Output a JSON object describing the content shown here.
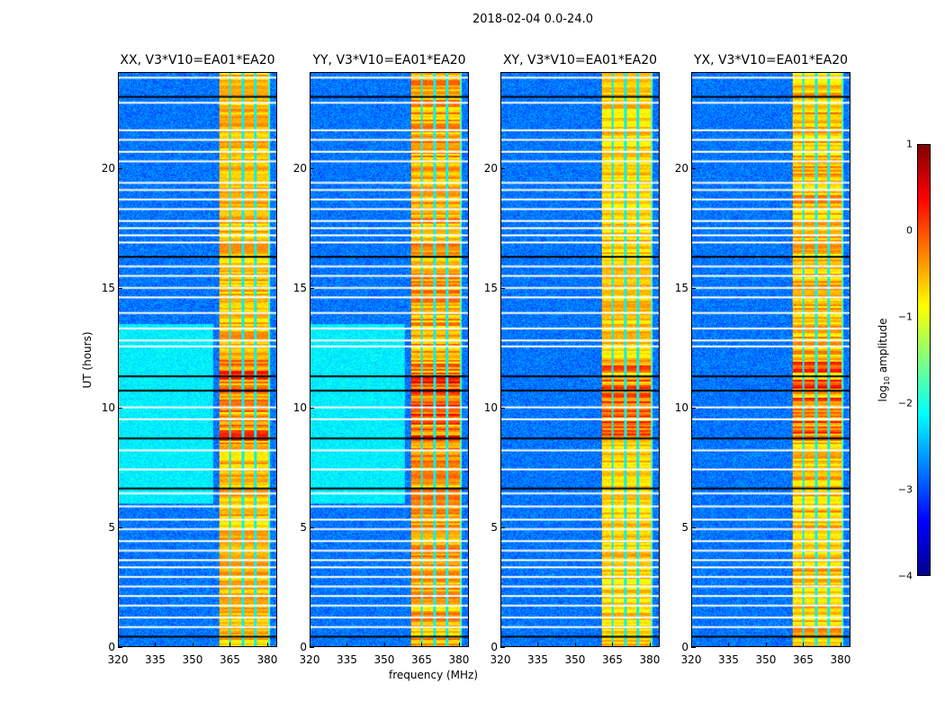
{
  "chart_data": {
    "type": "heatmap",
    "title": "2018-02-04 0.0-24.0",
    "xlabel": "frequency (MHz)",
    "ylabel": "UT (hours)",
    "xlim": [
      320,
      384
    ],
    "ylim": [
      0,
      24
    ],
    "xticks": [
      "320",
      "335",
      "350",
      "365",
      "380"
    ],
    "yticks": [
      "0",
      "5",
      "10",
      "15",
      "20"
    ],
    "panels": [
      {
        "title": "XX, V3*V10=EA01*EA20",
        "elevated_background": true
      },
      {
        "title": "YY, V3*V10=EA01*EA20",
        "elevated_background": true
      },
      {
        "title": "XY, V3*V10=EA01*EA20",
        "elevated_background": false
      },
      {
        "title": "YX, V3*V10=EA01*EA20",
        "elevated_background": false
      }
    ],
    "signal_band_mhz": [
      360.5,
      380.5
    ],
    "band_gaps_mhz": [
      365,
      370.2,
      375.3
    ],
    "flagged_hours_white": [
      23.8,
      22.75,
      21.6,
      21.2,
      20.7,
      20.3,
      19.4,
      19.1,
      18.7,
      18.3,
      17.8,
      17.5,
      17.2,
      16.9,
      15.9,
      15.5,
      15.0,
      14.6,
      13.95,
      13.3,
      12.8,
      12.55,
      10.0,
      9.5,
      8.2,
      7.4,
      6.4,
      5.85,
      5.3,
      4.9,
      4.4,
      4.0,
      3.6,
      3.3,
      2.9,
      2.5,
      2.1,
      1.7,
      1.2,
      0.8
    ],
    "flagged_hours_black": [
      23.0,
      16.3,
      11.3,
      10.7,
      8.7,
      6.6,
      0.4
    ],
    "colorbar": {
      "label": "log10 amplitude",
      "label_base": "log",
      "label_sub": "10",
      "label_rest": " amplitude",
      "range": [
        -4,
        1
      ],
      "ticks": [
        "1",
        "0",
        "−1",
        "−2",
        "−3",
        "−4"
      ],
      "colormap": "jet"
    }
  }
}
